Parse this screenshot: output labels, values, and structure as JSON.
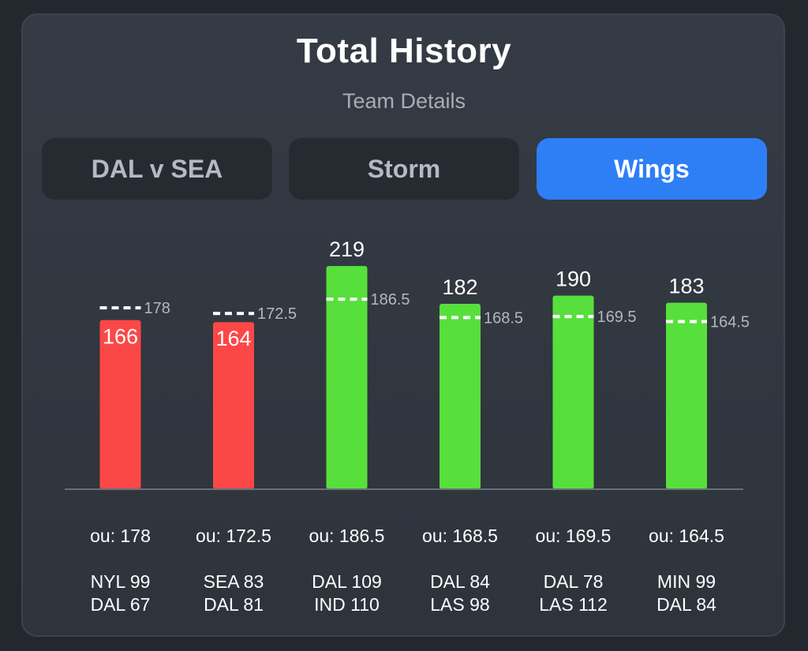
{
  "header": {
    "title": "Total History",
    "subtitle": "Team Details"
  },
  "tabs": [
    {
      "label": "DAL v SEA",
      "active": false
    },
    {
      "label": "Storm",
      "active": false
    },
    {
      "label": "Wings",
      "active": true
    }
  ],
  "colors": {
    "over": "#57df3c",
    "under": "#fc4747",
    "active_tab": "#2e7ef5",
    "line_marker": "#ffffff"
  },
  "chart_data": {
    "type": "bar",
    "categories": [
      "NYL 99 / DAL 67",
      "SEA 83 / DAL 81",
      "DAL 109 / IND 110",
      "DAL 84 / LAS 98",
      "DAL 78 / LAS 112",
      "MIN 99 / DAL 84"
    ],
    "values": [
      166,
      164,
      219,
      182,
      190,
      183
    ],
    "value_labels": [
      "166",
      "164",
      "219",
      "182",
      "190",
      "183"
    ],
    "lines": [
      178,
      172.5,
      186.5,
      168.5,
      169.5,
      164.5
    ],
    "line_labels": [
      "178",
      "172.5",
      "186.5",
      "168.5",
      "169.5",
      "164.5"
    ],
    "ou_labels": [
      "ou: 178",
      "ou: 172.5",
      "ou: 186.5",
      "ou: 168.5",
      "ou: 169.5",
      "ou: 164.5"
    ],
    "results": [
      "under",
      "under",
      "over",
      "over",
      "over",
      "over"
    ],
    "scores": [
      [
        "NYL 99",
        "DAL 67"
      ],
      [
        "SEA 83",
        "DAL 81"
      ],
      [
        "DAL 109",
        "IND 110"
      ],
      [
        "DAL 84",
        "LAS 98"
      ],
      [
        "DAL 78",
        "LAS 112"
      ],
      [
        "MIN 99",
        "DAL 84"
      ]
    ],
    "grid": false,
    "legend": "none"
  }
}
